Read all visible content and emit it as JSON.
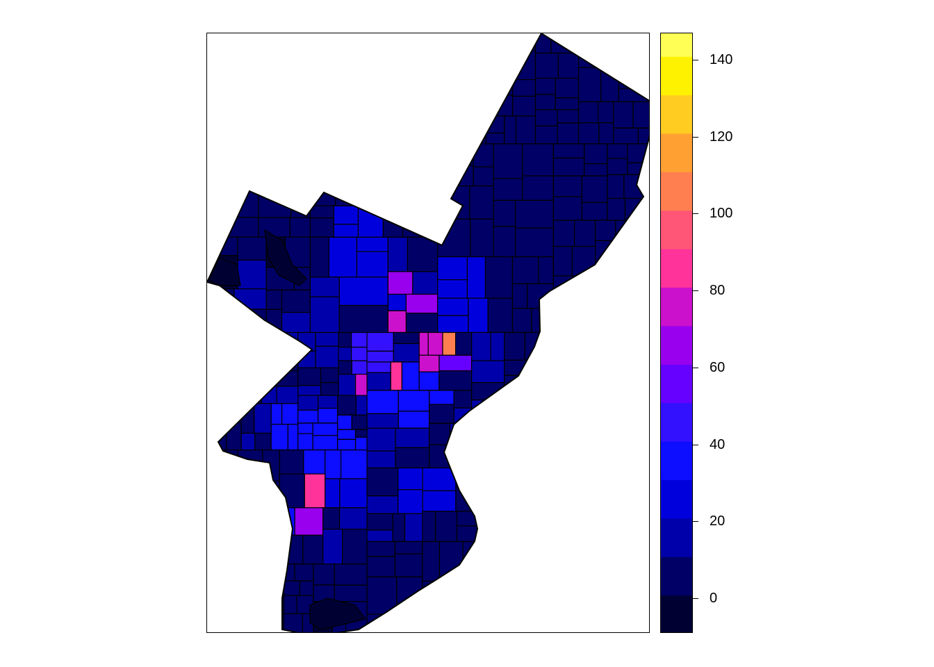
{
  "map": {
    "region_fill_base": "#000066",
    "border_color": "#000000"
  },
  "legend": {
    "min": -9,
    "max": 147,
    "bins": [
      {
        "from": -9,
        "to": 1,
        "color": "#000033"
      },
      {
        "from": 1,
        "to": 11,
        "color": "#000066"
      },
      {
        "from": 11,
        "to": 21,
        "color": "#0000AA"
      },
      {
        "from": 21,
        "to": 31,
        "color": "#0000DD"
      },
      {
        "from": 31,
        "to": 41,
        "color": "#0D0DFF"
      },
      {
        "from": 41,
        "to": 51,
        "color": "#3311FF"
      },
      {
        "from": 51,
        "to": 61,
        "color": "#6600FF"
      },
      {
        "from": 61,
        "to": 71,
        "color": "#9900EE"
      },
      {
        "from": 71,
        "to": 81,
        "color": "#CC11CC"
      },
      {
        "from": 81,
        "to": 91,
        "color": "#FF3399"
      },
      {
        "from": 91,
        "to": 101,
        "color": "#FF5577"
      },
      {
        "from": 101,
        "to": 111,
        "color": "#FF7F50"
      },
      {
        "from": 111,
        "to": 121,
        "color": "#FFA033"
      },
      {
        "from": 121,
        "to": 131,
        "color": "#FFCC22"
      },
      {
        "from": 131,
        "to": 141,
        "color": "#FFF200"
      },
      {
        "from": 141,
        "to": 147,
        "color": "#FFFF55"
      }
    ],
    "ticks": [
      {
        "value": 0,
        "label": "0"
      },
      {
        "value": 20,
        "label": "20"
      },
      {
        "value": 40,
        "label": "40"
      },
      {
        "value": 60,
        "label": "60"
      },
      {
        "value": 80,
        "label": "80"
      },
      {
        "value": 100,
        "label": "100"
      },
      {
        "value": 120,
        "label": "120"
      },
      {
        "value": 140,
        "label": "140"
      }
    ]
  },
  "highlight_colors": {
    "c0": "#000033",
    "c20": "#0000DD",
    "c30": "#0D0DFF",
    "c40": "#3311FF",
    "c55": "#6600FF",
    "c65": "#9900EE",
    "c75": "#CC11CC",
    "c85": "#FF3399",
    "c105": "#FF7F50",
    "c145": "#FFFF55"
  }
}
